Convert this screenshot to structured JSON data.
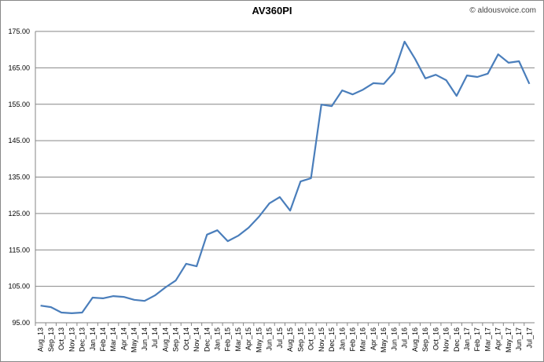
{
  "chart_data": {
    "type": "line",
    "title": "AV360PI",
    "watermark": "© aldousvoice.com",
    "categories": [
      "Aug_13",
      "Sep_13",
      "Oct_13",
      "Nov_13",
      "Dec_13",
      "Jan_14",
      "Feb_14",
      "Mar_14",
      "Apr_14",
      "May_14",
      "Jun_14",
      "Jul_14",
      "Aug_14",
      "Sep_14",
      "Oct_14",
      "Nov_14",
      "Dec_14",
      "Jan_15",
      "Feb_15",
      "Mar_15",
      "Apr_15",
      "May_15",
      "Jun_15",
      "Jul_15",
      "Aug_15",
      "Sep_15",
      "Oct_15",
      "Nov_15",
      "Dec_15",
      "Jan_16",
      "Feb_16",
      "Mar_16",
      "Apr_16",
      "May_16",
      "Jun_16",
      "Jul_16",
      "Aug_16",
      "Sep_16",
      "Oct_16",
      "Nov_16",
      "Dec_16",
      "Jan_17",
      "Feb_17",
      "Mar_17",
      "Apr_17",
      "May_17",
      "Jun_17",
      "Jul_17"
    ],
    "series": [
      {
        "name": "AV360PI",
        "color": "#4a7ebb",
        "values": [
          99.7,
          99.3,
          97.8,
          97.6,
          97.8,
          101.9,
          101.7,
          102.3,
          102.1,
          101.3,
          101.0,
          102.5,
          104.7,
          106.6,
          111.2,
          110.5,
          119.2,
          120.4,
          117.4,
          118.9,
          121.1,
          124.1,
          127.8,
          129.5,
          125.8,
          133.8,
          134.7,
          154.9,
          154.5,
          158.8,
          157.7,
          159.0,
          160.8,
          160.6,
          163.8,
          172.2,
          167.5,
          162.1,
          163.1,
          161.6,
          157.3,
          162.9,
          162.5,
          163.4,
          168.7,
          166.4,
          166.8,
          160.6
        ]
      }
    ],
    "ylim": [
      95,
      175
    ],
    "yticks": [
      {
        "value": 95,
        "label": "95.00"
      },
      {
        "value": 105,
        "label": "105.00"
      },
      {
        "value": 115,
        "label": "115.00"
      },
      {
        "value": 125,
        "label": "125.00"
      },
      {
        "value": 135,
        "label": "135.00"
      },
      {
        "value": 145,
        "label": "145.00"
      },
      {
        "value": 155,
        "label": "155.00"
      },
      {
        "value": 165,
        "label": "165.00"
      },
      {
        "value": 175,
        "label": "175.00"
      }
    ],
    "grid": true
  }
}
